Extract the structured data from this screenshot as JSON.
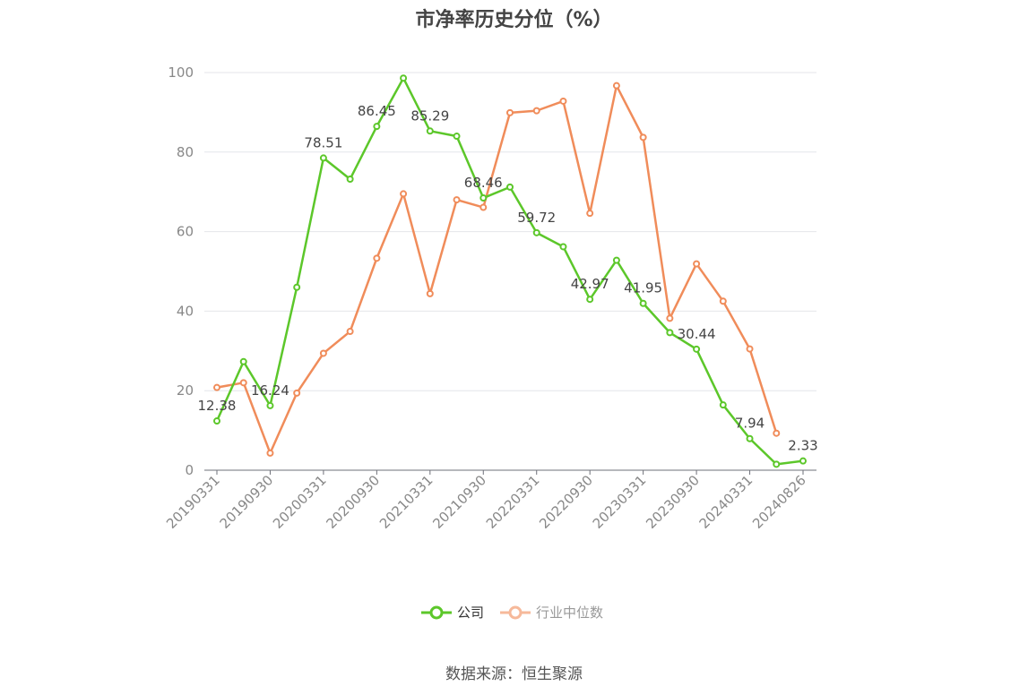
{
  "chart_data": {
    "type": "line",
    "title": "市净率历史分位（%）",
    "ylim": [
      0,
      100
    ],
    "yticks": [
      "0",
      "20",
      "40",
      "60",
      "80",
      "100"
    ],
    "x": [
      "20190331",
      "20190630",
      "20190930",
      "20191231",
      "20200331",
      "20200630",
      "20200930",
      "20201231",
      "20210331",
      "20210630",
      "20210930",
      "20211231",
      "20220331",
      "20220630",
      "20220930",
      "20221231",
      "20230331",
      "20230630",
      "20230930",
      "20231231",
      "20240331",
      "20240630",
      "20240826"
    ],
    "xticks": [
      "20190331",
      "20190930",
      "20200331",
      "20200930",
      "20210331",
      "20210930",
      "20220331",
      "20220930",
      "20230331",
      "20230930",
      "20240331",
      "20240826"
    ],
    "grid": true,
    "legend_position": "bottom",
    "series": [
      {
        "name": "公司",
        "color": "#5cc72a",
        "values": [
          12.38,
          27.3,
          16.24,
          46.0,
          78.51,
          73.2,
          86.45,
          98.6,
          85.29,
          84.0,
          68.46,
          71.2,
          59.72,
          56.2,
          42.97,
          52.8,
          41.95,
          34.6,
          30.44,
          16.4,
          7.94,
          1.5,
          2.33
        ],
        "labels": [
          "12.38",
          "",
          "16.24",
          "",
          "78.51",
          "",
          "86.45",
          "",
          "85.29",
          "",
          "68.46",
          "",
          "59.72",
          "",
          "42.97",
          "",
          "41.95",
          "",
          "30.44",
          "",
          "7.94",
          "",
          "2.33"
        ]
      },
      {
        "name": "行业中位数",
        "color": "#f08c5a",
        "values": [
          20.8,
          22.0,
          4.3,
          19.4,
          29.4,
          34.9,
          53.3,
          69.5,
          44.4,
          68.0,
          66.1,
          89.9,
          90.4,
          92.8,
          64.6,
          96.7,
          83.7,
          38.2,
          51.9,
          42.5,
          30.5,
          9.3,
          null
        ],
        "labels": []
      }
    ]
  },
  "legend": {
    "company_label": "公司",
    "industry_label": "行业中位数"
  },
  "footer": {
    "source": "数据来源：恒生聚源"
  }
}
